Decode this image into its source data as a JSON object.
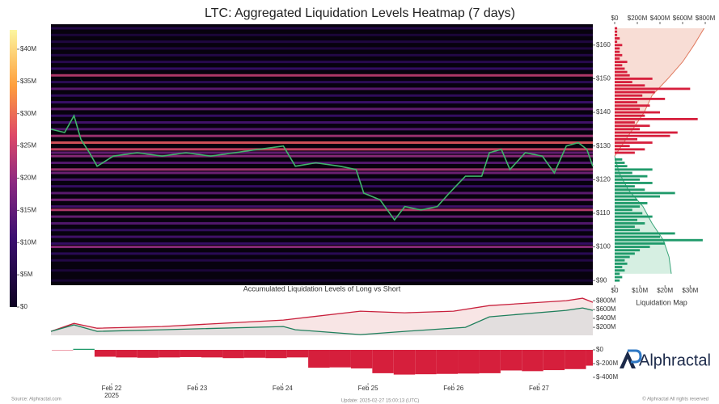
{
  "chart_data": [
    {
      "type": "heatmap",
      "title": "LTC: Aggregated Liquidation Levels Heatmap (7 days)",
      "xlim": [
        21.29,
        27.63
      ],
      "xticks": [
        {
          "value": 22,
          "label": "Feb 22"
        },
        {
          "value": 23,
          "label": "Feb 23"
        },
        {
          "value": 24,
          "label": "Feb 24"
        },
        {
          "value": 25,
          "label": "Feb 25"
        },
        {
          "value": 26,
          "label": "Feb 26"
        },
        {
          "value": 27,
          "label": "Feb 27"
        }
      ],
      "x_year": "2025",
      "ylim": [
        88.6,
        166.2
      ],
      "yticks": [
        {
          "value": 90,
          "label": "$90"
        },
        {
          "value": 100,
          "label": "$100"
        },
        {
          "value": 110,
          "label": "$110"
        },
        {
          "value": 120,
          "label": "$120"
        },
        {
          "value": 130,
          "label": "$130"
        },
        {
          "value": 140,
          "label": "$140"
        },
        {
          "value": 150,
          "label": "$150"
        },
        {
          "value": 160,
          "label": "$160"
        }
      ],
      "colorbar": {
        "lim": [
          0,
          43
        ],
        "ticks": [
          {
            "value": 0,
            "label": "$0"
          },
          {
            "value": 5,
            "label": "$5M"
          },
          {
            "value": 10,
            "label": "$10M"
          },
          {
            "value": 15,
            "label": "$15M"
          },
          {
            "value": 20,
            "label": "$20M"
          },
          {
            "value": 25,
            "label": "$25M"
          },
          {
            "value": 30,
            "label": "$30M"
          },
          {
            "value": 35,
            "label": "$35M"
          },
          {
            "value": 40,
            "label": "$40M"
          }
        ]
      },
      "levels": {
        "prices": [
          90,
          93,
          96,
          98,
          100,
          101,
          103,
          105,
          107,
          109,
          111,
          112,
          114,
          116,
          118,
          120,
          122,
          123,
          125,
          127,
          128,
          129,
          131,
          133,
          135,
          137,
          139,
          141,
          143,
          145,
          147,
          149,
          151,
          153,
          155,
          157,
          159,
          161,
          163,
          165
        ],
        "values": [
          3,
          4,
          6,
          8,
          20,
          10,
          12,
          9,
          14,
          16,
          24,
          12,
          18,
          15,
          10,
          13,
          17,
          22,
          14,
          20,
          16,
          26,
          28,
          22,
          14,
          12,
          10,
          16,
          11,
          9,
          15,
          8,
          24,
          10,
          7,
          6,
          5,
          5,
          4,
          6
        ]
      },
      "price": {
        "color": "#3fb56a",
        "x": [
          21.29,
          21.45,
          21.56,
          21.64,
          21.74,
          21.83,
          22.02,
          22.3,
          22.59,
          22.87,
          23.16,
          23.44,
          23.72,
          24.01,
          24.15,
          24.39,
          24.67,
          24.86,
          24.95,
          25.14,
          25.31,
          25.43,
          25.62,
          25.81,
          25.95,
          26.14,
          26.33,
          26.42,
          26.56,
          26.66,
          26.84,
          27.04,
          27.18,
          27.32,
          27.46,
          27.56,
          27.63
        ],
        "values": [
          135,
          134,
          139,
          132,
          128,
          124,
          127,
          128,
          127,
          128,
          127,
          128,
          129,
          130,
          124,
          125,
          124,
          123,
          116,
          114,
          108,
          112,
          111,
          112,
          116,
          121,
          121,
          128,
          129,
          123,
          128,
          127,
          122,
          130,
          131,
          129,
          124
        ]
      }
    },
    {
      "type": "line",
      "title": "Accumulated Liquidation Levels of Long vs Short",
      "xlim": [
        21.29,
        27.63
      ],
      "ylim": [
        20,
        930
      ],
      "yticks": [
        {
          "value": 200,
          "label": "$200M"
        },
        {
          "value": 400,
          "label": "$400M"
        },
        {
          "value": 600,
          "label": "$600M"
        },
        {
          "value": 800,
          "label": "$800M"
        }
      ],
      "series": [
        {
          "color": "#c8203c",
          "fill": "#f6dede",
          "x": [
            21.29,
            21.56,
            21.83,
            22.59,
            24.01,
            24.91,
            25.43,
            26.0,
            26.42,
            27.32,
            27.51,
            27.63
          ],
          "values": [
            110,
            290,
            180,
            218,
            364,
            564,
            527,
            564,
            690,
            800,
            855,
            764
          ]
        },
        {
          "color": "#1f7f5c",
          "fill": "#dcdcdc",
          "x": [
            21.29,
            21.56,
            21.83,
            22.59,
            24.01,
            24.15,
            24.91,
            25.43,
            26.14,
            26.42,
            27.32,
            27.51,
            27.63
          ],
          "values": [
            110,
            255,
            110,
            145,
            218,
            145,
            36,
            110,
            200,
            437,
            582,
            637,
            582
          ]
        }
      ]
    },
    {
      "type": "bar",
      "xlim": [
        21.29,
        27.63
      ],
      "ylim": [
        -459,
        59
      ],
      "yticks": [
        {
          "value": 0,
          "label": "$0"
        },
        {
          "value": -200,
          "label": "$-200M"
        },
        {
          "value": -400,
          "label": "$-400M"
        }
      ],
      "colors": {
        "positive": "#1f9a6a",
        "negative": "#d61f3c"
      },
      "x": [
        21.3,
        21.55,
        21.8,
        22.05,
        22.3,
        22.55,
        22.8,
        23.05,
        23.3,
        23.55,
        23.8,
        24.05,
        24.3,
        24.55,
        24.8,
        25.05,
        25.3,
        25.55,
        25.8,
        26.05,
        26.3,
        26.55,
        26.8,
        27.05,
        27.3,
        27.55
      ],
      "values": [
        -5,
        15,
        -100,
        -110,
        -115,
        -110,
        -105,
        -110,
        -120,
        -115,
        -120,
        -110,
        -260,
        -255,
        -270,
        -340,
        -360,
        -355,
        -350,
        -345,
        -340,
        -300,
        -310,
        -295,
        -280,
        -230
      ]
    },
    {
      "type": "hbar",
      "title": "Liquidation Map",
      "ylim": [
        88.6,
        166.2
      ],
      "xlim": [
        0,
        36
      ],
      "xticks": [
        {
          "value": 0,
          "label": "$0"
        },
        {
          "value": 10,
          "label": "$10M"
        },
        {
          "value": 20,
          "label": "$20M"
        },
        {
          "value": 30,
          "label": "$30M"
        }
      ],
      "x2lim": [
        0,
        800
      ],
      "x2ticks": [
        {
          "value": 0,
          "label": "$0"
        },
        {
          "value": 200,
          "label": "$200M"
        },
        {
          "value": 400,
          "label": "$400M"
        },
        {
          "value": 600,
          "label": "$600M"
        },
        {
          "value": 800,
          "label": "$800M"
        }
      ],
      "series": [
        {
          "color": "#d61f3c",
          "prices": [
            128,
            129,
            130,
            131,
            132,
            133,
            134,
            135,
            136,
            137,
            138,
            139,
            140,
            141,
            142,
            143,
            144,
            145,
            146,
            147,
            148,
            149,
            150,
            151,
            152,
            153,
            154,
            155,
            156,
            157,
            158,
            159,
            160,
            161,
            162,
            163,
            164,
            165
          ],
          "values": [
            8,
            12,
            6,
            15,
            9,
            22,
            25,
            10,
            14,
            8,
            33,
            12,
            18,
            10,
            14,
            9,
            20,
            11,
            16,
            30,
            12,
            7,
            15,
            6,
            5,
            4,
            3,
            5,
            2,
            3,
            2,
            2,
            3,
            1,
            2,
            1,
            1,
            1
          ]
        },
        {
          "color": "#1f9a6a",
          "prices": [
            90,
            91,
            92,
            93,
            94,
            95,
            96,
            97,
            98,
            99,
            100,
            101,
            102,
            103,
            104,
            105,
            106,
            107,
            108,
            109,
            110,
            111,
            112,
            113,
            114,
            115,
            116,
            117,
            118,
            119,
            120,
            121,
            122,
            123,
            124,
            125,
            126
          ],
          "values": [
            2,
            3,
            2,
            4,
            3,
            5,
            4,
            6,
            8,
            10,
            14,
            20,
            35,
            18,
            24,
            10,
            8,
            12,
            9,
            15,
            11,
            7,
            10,
            13,
            9,
            18,
            24,
            12,
            8,
            15,
            10,
            13,
            7,
            15,
            5,
            4,
            3
          ]
        }
      ],
      "cumulative": [
        {
          "axis": "x2",
          "color": "#e07a5f",
          "fill": "#f8ddd5",
          "prices": [
            127,
            130,
            135,
            140,
            145,
            150,
            155,
            160,
            165
          ],
          "values": [
            0,
            60,
            160,
            260,
            330,
            470,
            600,
            700,
            790
          ]
        },
        {
          "axis": "x2",
          "color": "#3aa57a",
          "fill": "#d6efe2",
          "prices": [
            127,
            122,
            117,
            112,
            107,
            102,
            97,
            92
          ],
          "values": [
            0,
            40,
            120,
            250,
            330,
            430,
            480,
            500
          ]
        }
      ]
    }
  ],
  "footer": {
    "source": "Source: Alphractal.com",
    "update": "Update: 2025-02-27 15:00:13 (UTC)",
    "copyright": "© Alphractal All rights reserved",
    "logo": "Alphractal"
  }
}
